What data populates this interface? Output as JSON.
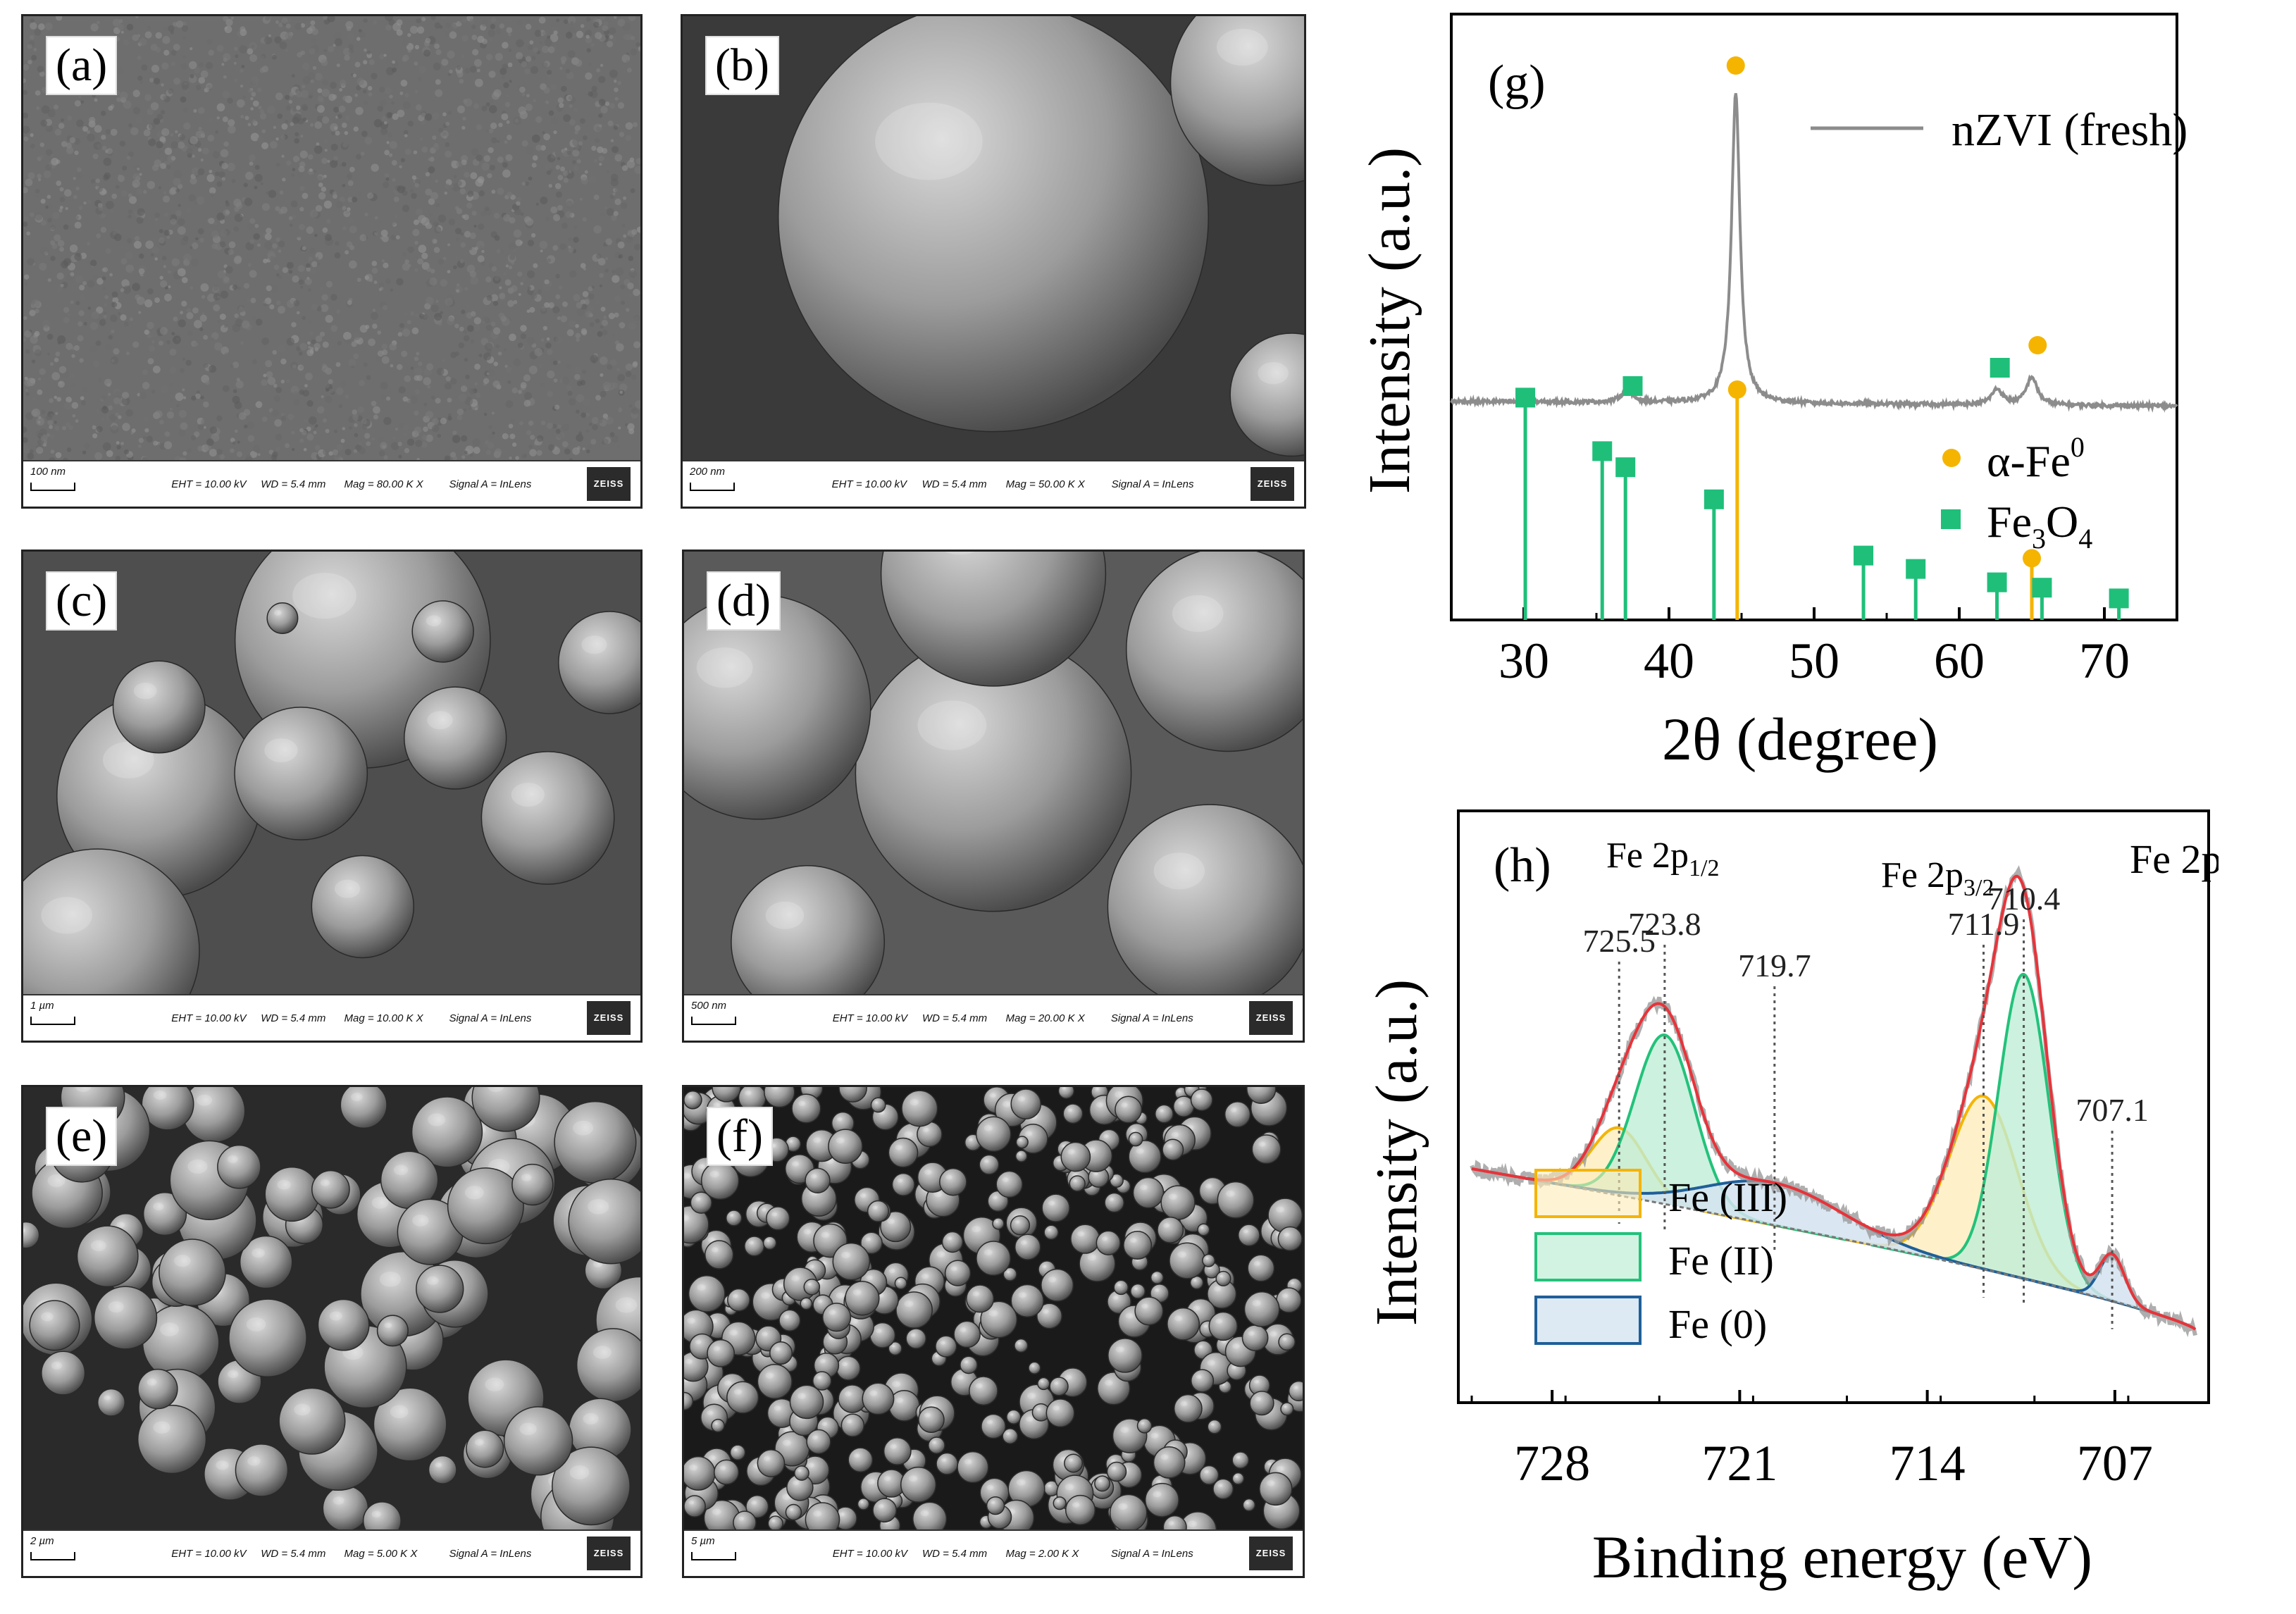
{
  "sem_panels": [
    {
      "letter": "(a)",
      "scale": "100 nm",
      "eht": "EHT = 10.00 kV",
      "wd": "WD =  5.4 mm",
      "mag": "Mag =  80.00 K X",
      "signal": "Signal A = InLens",
      "logo": "ZEISS"
    },
    {
      "letter": "(b)",
      "scale": "200 nm",
      "eht": "EHT = 10.00 kV",
      "wd": "WD =  5.4 mm",
      "mag": "Mag =  50.00 K X",
      "signal": "Signal A = InLens",
      "logo": "ZEISS"
    },
    {
      "letter": "(c)",
      "scale": "1 µm",
      "eht": "EHT = 10.00 kV",
      "wd": "WD =  5.4 mm",
      "mag": "Mag =  10.00 K X",
      "signal": "Signal A = InLens",
      "logo": "ZEISS"
    },
    {
      "letter": "(d)",
      "scale": "500 nm",
      "eht": "EHT = 10.00 kV",
      "wd": "WD =  5.4 mm",
      "mag": "Mag =  20.00 K X",
      "signal": "Signal A = InLens",
      "logo": "ZEISS"
    },
    {
      "letter": "(e)",
      "scale": "2 µm",
      "eht": "EHT = 10.00 kV",
      "wd": "WD =  5.4 mm",
      "mag": "Mag =  5.00 K X",
      "signal": "Signal A = InLens",
      "logo": "ZEISS"
    },
    {
      "letter": "(f)",
      "scale": "5 µm",
      "eht": "EHT = 10.00 kV",
      "wd": "WD =  5.4 mm",
      "mag": "Mag =  2.00 K X",
      "signal": "Signal A = InLens",
      "logo": "ZEISS"
    }
  ],
  "chart_data": [
    {
      "type": "line",
      "panel_letter": "(g)",
      "xlabel": "2θ (degree)",
      "ylabel": "Intensity (a.u.)",
      "xlim": [
        25,
        75
      ],
      "xticks": [
        30,
        40,
        50,
        60,
        70
      ],
      "legend": {
        "placement": "top-right"
      },
      "colors": {
        "pattern": "#8c8c8c",
        "fe": "#f5b400",
        "fe3o4": "#1fbf7a"
      },
      "series": [
        {
          "name": "nZVI (fresh)",
          "peaks": [
            {
              "x": 37.1,
              "height": 0.04
            },
            {
              "x": 44.6,
              "height": 1.0
            },
            {
              "x": 62.6,
              "height": 0.05
            },
            {
              "x": 65.0,
              "height": 0.09
            }
          ]
        }
      ],
      "markers_on_pattern": [
        {
          "x": 44.6,
          "phase": "α-Fe⁰"
        },
        {
          "x": 37.5,
          "phase": "Fe₃O₄"
        },
        {
          "x": 62.8,
          "phase": "Fe₃O₄"
        },
        {
          "x": 65.4,
          "phase": "α-Fe⁰"
        }
      ],
      "reference_sticks": [
        {
          "name": "α-Fe⁰",
          "legend_main": "α-Fe",
          "legend_sup": "0",
          "lines": [
            {
              "x": 44.7,
              "height": 0.85
            },
            {
              "x": 65.0,
              "height": 0.22
            }
          ]
        },
        {
          "name": "Fe₃O₄",
          "legend_main": "Fe",
          "legend_sub1": "3",
          "legend_mid": "O",
          "legend_sub2": "4",
          "lines": [
            {
              "x": 30.1,
              "height": 0.82
            },
            {
              "x": 35.4,
              "height": 0.62
            },
            {
              "x": 37.0,
              "height": 0.56
            },
            {
              "x": 43.1,
              "height": 0.44
            },
            {
              "x": 53.4,
              "height": 0.23
            },
            {
              "x": 57.0,
              "height": 0.18
            },
            {
              "x": 62.6,
              "height": 0.13
            },
            {
              "x": 65.7,
              "height": 0.11
            },
            {
              "x": 71.0,
              "height": 0.07
            }
          ]
        }
      ]
    },
    {
      "type": "area",
      "panel_letter": "(h)",
      "title": "Fe 2p",
      "xlabel": "Binding energy (eV)",
      "ylabel": "Intensity (a.u.)",
      "xlim": [
        731.5,
        703.5
      ],
      "x_reversed": true,
      "xticks": [
        728,
        721,
        714,
        707
      ],
      "legend": {
        "placement": "bottom-left"
      },
      "peak_labels": [
        {
          "x": 725.5,
          "text": "725.5"
        },
        {
          "x": 723.8,
          "text": "723.8"
        },
        {
          "x": 719.7,
          "text": "719.7"
        },
        {
          "x": 711.9,
          "text": "711.9"
        },
        {
          "x": 710.4,
          "text": "710.4"
        },
        {
          "x": 707.1,
          "text": "707.1"
        }
      ],
      "group_labels": [
        {
          "main": "Fe 2p",
          "sub": "1/2"
        },
        {
          "main": "Fe 2p",
          "sub": "3/2"
        }
      ],
      "components": [
        {
          "name": "Fe (III)",
          "color": "#f5b400",
          "peaks": [
            {
              "center": 725.5,
              "height": 0.16,
              "fwhm": 2.4
            },
            {
              "center": 711.9,
              "height": 0.41,
              "fwhm": 3.0
            }
          ]
        },
        {
          "name": "Fe (II)",
          "color": "#22c27a",
          "peaks": [
            {
              "center": 723.8,
              "height": 0.4,
              "fwhm": 2.6
            },
            {
              "center": 710.4,
              "height": 0.72,
              "fwhm": 2.2
            }
          ]
        },
        {
          "name": "Fe (0)",
          "color": "#1f5f99",
          "peaks": [
            {
              "center": 719.7,
              "height": 0.1,
              "fwhm": 6.0
            },
            {
              "center": 707.1,
              "height": 0.11,
              "fwhm": 1.1
            }
          ]
        }
      ],
      "background_color": "#d0e3f0",
      "envelope_color": "#e8333a",
      "raw_color": "#9a9a9a"
    }
  ]
}
